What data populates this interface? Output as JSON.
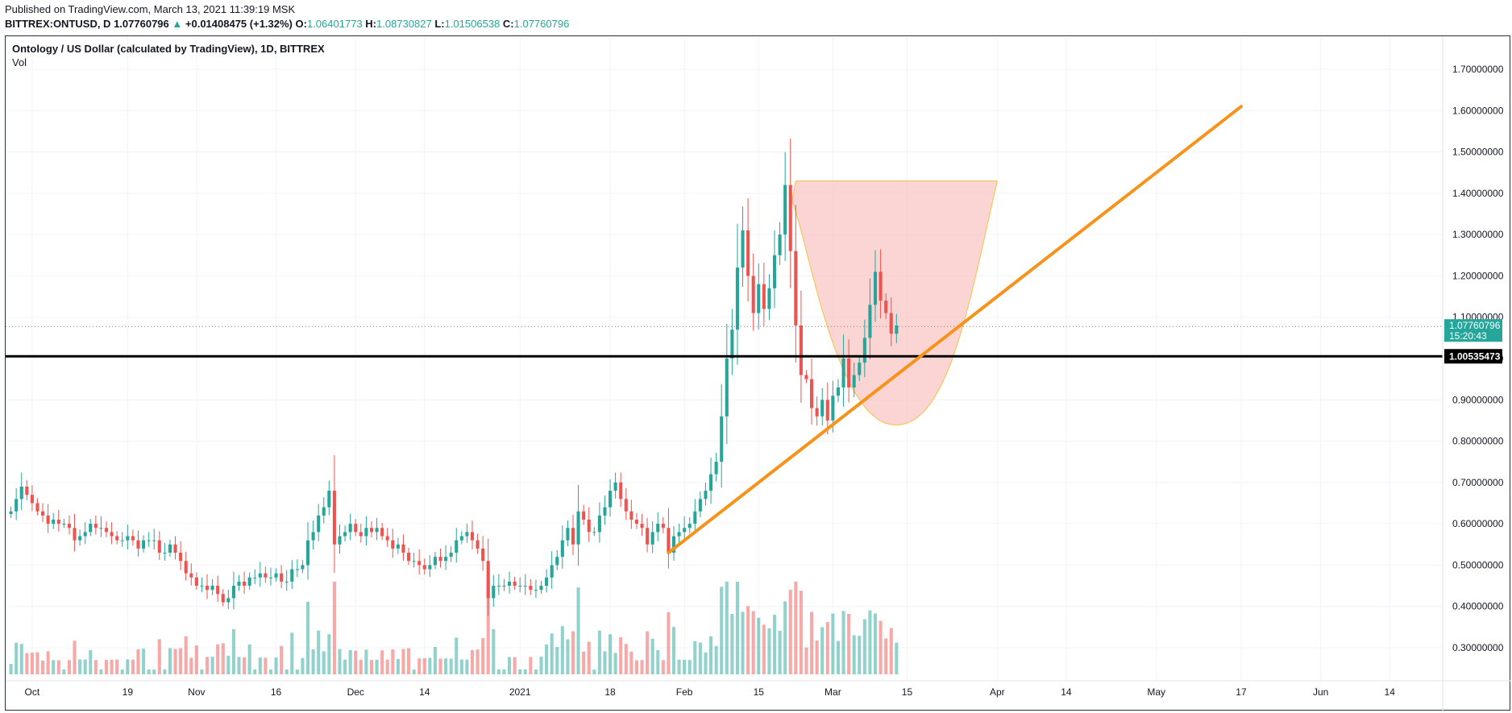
{
  "header": {
    "published": "Published on TradingView.com, March 13, 2021 11:39:19 MSK",
    "symbol": "BITTREX:ONTUSD, D",
    "last": "1.07760796",
    "change": "+0.01408475 (+1.32%)",
    "o_label": "O:",
    "o": "1.06401773",
    "h_label": "H:",
    "h": "1.08730827",
    "l_label": "L:",
    "l": "1.01506538",
    "c_label": "C:",
    "c": "1.07760796"
  },
  "legend": {
    "title": "Ontology / US Dollar (calculated by TradingView), 1D, BITTREX",
    "vol": "Vol"
  },
  "badges": {
    "price": "1.07760796",
    "countdown": "15:20:43",
    "level": "1.00535473"
  },
  "colors": {
    "up": "#26a69a",
    "down": "#ef5350",
    "trendline": "#f7931a",
    "shape_fill": "#f8c7c5",
    "shape_stroke": "#f5c242",
    "level_line": "#000000"
  },
  "chart_data": {
    "type": "candlestick",
    "symbol": "BITTREX:ONTUSD",
    "interval": "1D",
    "y_ticks": [
      0.3,
      0.4,
      0.5,
      0.6,
      0.7,
      0.8,
      0.9,
      1.0,
      1.1,
      1.2,
      1.3,
      1.4,
      1.5,
      1.6,
      1.7
    ],
    "y_tick_labels": [
      "0.30000000",
      "0.40000000",
      "0.50000000",
      "0.60000000",
      "0.70000000",
      "0.80000000",
      "0.90000000",
      "1.00000000",
      "1.10000000",
      "1.20000000",
      "1.30000000",
      "1.40000000",
      "1.50000000",
      "1.60000000",
      "1.70000000"
    ],
    "ylim": [
      0.22,
      1.78
    ],
    "x_start": "2020-09-26",
    "x_end": "2021-06-24",
    "x_ticks": [
      {
        "date": "2020-10-01",
        "label": "Oct"
      },
      {
        "date": "2020-10-19",
        "label": "19"
      },
      {
        "date": "2020-11-01",
        "label": "Nov"
      },
      {
        "date": "2020-11-16",
        "label": "16"
      },
      {
        "date": "2020-12-01",
        "label": "Dec"
      },
      {
        "date": "2020-12-14",
        "label": "14"
      },
      {
        "date": "2021-01-01",
        "label": "2021"
      },
      {
        "date": "2021-01-18",
        "label": "18"
      },
      {
        "date": "2021-02-01",
        "label": "Feb"
      },
      {
        "date": "2021-02-15",
        "label": "15"
      },
      {
        "date": "2021-03-01",
        "label": "Mar"
      },
      {
        "date": "2021-03-15",
        "label": "15"
      },
      {
        "date": "2021-04-01",
        "label": "Apr"
      },
      {
        "date": "2021-04-14",
        "label": "14"
      },
      {
        "date": "2021-05-01",
        "label": "May"
      },
      {
        "date": "2021-05-17",
        "label": "17"
      },
      {
        "date": "2021-06-01",
        "label": "Jun"
      },
      {
        "date": "2021-06-14",
        "label": "14"
      }
    ],
    "ohlc": [
      {
        "date": "2020-09-27",
        "close": 0.63
      },
      {
        "date": "2020-09-28",
        "close": 0.66
      },
      {
        "date": "2020-09-29",
        "close": 0.69
      },
      {
        "date": "2020-09-30",
        "close": 0.67
      },
      {
        "date": "2020-10-01",
        "close": 0.65
      },
      {
        "date": "2020-10-02",
        "close": 0.63
      },
      {
        "date": "2020-10-03",
        "close": 0.62
      },
      {
        "date": "2020-10-04",
        "close": 0.6
      },
      {
        "date": "2020-10-05",
        "close": 0.61
      },
      {
        "date": "2020-10-06",
        "close": 0.6
      },
      {
        "date": "2020-10-07",
        "close": 0.6
      },
      {
        "date": "2020-10-08",
        "close": 0.59
      },
      {
        "date": "2020-10-09",
        "close": 0.56
      },
      {
        "date": "2020-10-10",
        "close": 0.57
      },
      {
        "date": "2020-10-11",
        "close": 0.58
      },
      {
        "date": "2020-10-12",
        "close": 0.6
      },
      {
        "date": "2020-10-13",
        "close": 0.59
      },
      {
        "date": "2020-10-14",
        "close": 0.59
      },
      {
        "date": "2020-10-15",
        "close": 0.58
      },
      {
        "date": "2020-10-16",
        "close": 0.57
      },
      {
        "date": "2020-10-17",
        "close": 0.56
      },
      {
        "date": "2020-10-18",
        "close": 0.56
      },
      {
        "date": "2020-10-19",
        "close": 0.57
      },
      {
        "date": "2020-10-20",
        "close": 0.56
      },
      {
        "date": "2020-10-21",
        "close": 0.54
      },
      {
        "date": "2020-10-22",
        "close": 0.56
      },
      {
        "date": "2020-10-23",
        "close": 0.56
      },
      {
        "date": "2020-10-24",
        "close": 0.56
      },
      {
        "date": "2020-10-25",
        "close": 0.53
      },
      {
        "date": "2020-10-26",
        "close": 0.53
      },
      {
        "date": "2020-10-27",
        "close": 0.55
      },
      {
        "date": "2020-10-28",
        "close": 0.53
      },
      {
        "date": "2020-10-29",
        "close": 0.51
      },
      {
        "date": "2020-10-30",
        "close": 0.48
      },
      {
        "date": "2020-10-31",
        "close": 0.47
      },
      {
        "date": "2020-11-01",
        "close": 0.45
      },
      {
        "date": "2020-11-02",
        "close": 0.45
      },
      {
        "date": "2020-11-03",
        "close": 0.44
      },
      {
        "date": "2020-11-04",
        "close": 0.45
      },
      {
        "date": "2020-11-05",
        "close": 0.43
      },
      {
        "date": "2020-11-06",
        "close": 0.41
      },
      {
        "date": "2020-11-07",
        "close": 0.42
      },
      {
        "date": "2020-11-08",
        "close": 0.45
      },
      {
        "date": "2020-11-09",
        "close": 0.46
      },
      {
        "date": "2020-11-10",
        "close": 0.45
      },
      {
        "date": "2020-11-11",
        "close": 0.47
      },
      {
        "date": "2020-11-12",
        "close": 0.47
      },
      {
        "date": "2020-11-13",
        "close": 0.48
      },
      {
        "date": "2020-11-14",
        "close": 0.47
      },
      {
        "date": "2020-11-15",
        "close": 0.47
      },
      {
        "date": "2020-11-16",
        "close": 0.48
      },
      {
        "date": "2020-11-17",
        "close": 0.46
      },
      {
        "date": "2020-11-18",
        "close": 0.46
      },
      {
        "date": "2020-11-19",
        "close": 0.49
      },
      {
        "date": "2020-11-20",
        "close": 0.49
      },
      {
        "date": "2020-11-21",
        "close": 0.5
      },
      {
        "date": "2020-11-22",
        "close": 0.56
      },
      {
        "date": "2020-11-23",
        "close": 0.58
      },
      {
        "date": "2020-11-24",
        "close": 0.62
      },
      {
        "date": "2020-11-25",
        "close": 0.64
      },
      {
        "date": "2020-11-26",
        "close": 0.68
      },
      {
        "date": "2020-11-27",
        "close": 0.55
      },
      {
        "date": "2020-11-28",
        "close": 0.57
      },
      {
        "date": "2020-11-29",
        "close": 0.58
      },
      {
        "date": "2020-11-30",
        "close": 0.6
      },
      {
        "date": "2020-12-01",
        "close": 0.58
      },
      {
        "date": "2020-12-02",
        "close": 0.57
      },
      {
        "date": "2020-12-03",
        "close": 0.59
      },
      {
        "date": "2020-12-04",
        "close": 0.58
      },
      {
        "date": "2020-12-05",
        "close": 0.59
      },
      {
        "date": "2020-12-06",
        "close": 0.57
      },
      {
        "date": "2020-12-07",
        "close": 0.56
      },
      {
        "date": "2020-12-08",
        "close": 0.54
      },
      {
        "date": "2020-12-09",
        "close": 0.55
      },
      {
        "date": "2020-12-10",
        "close": 0.53
      },
      {
        "date": "2020-12-11",
        "close": 0.51
      },
      {
        "date": "2020-12-12",
        "close": 0.51
      },
      {
        "date": "2020-12-13",
        "close": 0.5
      },
      {
        "date": "2020-12-14",
        "close": 0.49
      },
      {
        "date": "2020-12-15",
        "close": 0.5
      },
      {
        "date": "2020-12-16",
        "close": 0.52
      },
      {
        "date": "2020-12-17",
        "close": 0.51
      },
      {
        "date": "2020-12-18",
        "close": 0.52
      },
      {
        "date": "2020-12-19",
        "close": 0.53
      },
      {
        "date": "2020-12-20",
        "close": 0.56
      },
      {
        "date": "2020-12-21",
        "close": 0.57
      },
      {
        "date": "2020-12-22",
        "close": 0.58
      },
      {
        "date": "2020-12-23",
        "close": 0.56
      },
      {
        "date": "2020-12-24",
        "close": 0.54
      },
      {
        "date": "2020-12-25",
        "close": 0.51
      },
      {
        "date": "2020-12-26",
        "close": 0.42
      },
      {
        "date": "2020-12-27",
        "close": 0.45
      },
      {
        "date": "2020-12-28",
        "close": 0.45
      },
      {
        "date": "2020-12-29",
        "close": 0.45
      },
      {
        "date": "2020-12-30",
        "close": 0.46
      },
      {
        "date": "2020-12-31",
        "close": 0.45
      },
      {
        "date": "2021-01-01",
        "close": 0.45
      },
      {
        "date": "2021-01-02",
        "close": 0.45
      },
      {
        "date": "2021-01-03",
        "close": 0.44
      },
      {
        "date": "2021-01-04",
        "close": 0.44
      },
      {
        "date": "2021-01-05",
        "close": 0.45
      },
      {
        "date": "2021-01-06",
        "close": 0.47
      },
      {
        "date": "2021-01-07",
        "close": 0.5
      },
      {
        "date": "2021-01-08",
        "close": 0.52
      },
      {
        "date": "2021-01-09",
        "close": 0.56
      },
      {
        "date": "2021-01-10",
        "close": 0.59
      },
      {
        "date": "2021-01-11",
        "close": 0.55
      },
      {
        "date": "2021-01-12",
        "close": 0.63
      },
      {
        "date": "2021-01-13",
        "close": 0.61
      },
      {
        "date": "2021-01-14",
        "close": 0.58
      },
      {
        "date": "2021-01-15",
        "close": 0.58
      },
      {
        "date": "2021-01-16",
        "close": 0.62
      },
      {
        "date": "2021-01-17",
        "close": 0.64
      },
      {
        "date": "2021-01-18",
        "close": 0.68
      },
      {
        "date": "2021-01-19",
        "close": 0.7
      },
      {
        "date": "2021-01-20",
        "close": 0.66
      },
      {
        "date": "2021-01-21",
        "close": 0.63
      },
      {
        "date": "2021-01-22",
        "close": 0.61
      },
      {
        "date": "2021-01-23",
        "close": 0.6
      },
      {
        "date": "2021-01-24",
        "close": 0.59
      },
      {
        "date": "2021-01-25",
        "close": 0.55
      },
      {
        "date": "2021-01-26",
        "close": 0.58
      },
      {
        "date": "2021-01-27",
        "close": 0.6
      },
      {
        "date": "2021-01-28",
        "close": 0.59
      },
      {
        "date": "2021-01-29",
        "close": 0.53
      },
      {
        "date": "2021-01-30",
        "close": 0.57
      },
      {
        "date": "2021-01-31",
        "close": 0.58
      },
      {
        "date": "2021-02-01",
        "close": 0.59
      },
      {
        "date": "2021-02-02",
        "close": 0.6
      },
      {
        "date": "2021-02-03",
        "close": 0.63
      },
      {
        "date": "2021-02-04",
        "close": 0.66
      },
      {
        "date": "2021-02-05",
        "close": 0.68
      },
      {
        "date": "2021-02-06",
        "close": 0.72
      },
      {
        "date": "2021-02-07",
        "close": 0.75
      },
      {
        "date": "2021-02-08",
        "close": 0.86
      },
      {
        "date": "2021-02-09",
        "close": 1.0
      },
      {
        "date": "2021-02-10",
        "close": 1.07
      },
      {
        "date": "2021-02-11",
        "close": 1.22
      },
      {
        "date": "2021-02-12",
        "close": 1.31
      },
      {
        "date": "2021-02-13",
        "close": 1.2
      },
      {
        "date": "2021-02-14",
        "close": 1.11
      },
      {
        "date": "2021-02-15",
        "close": 1.18
      },
      {
        "date": "2021-02-16",
        "close": 1.12
      },
      {
        "date": "2021-02-17",
        "close": 1.17
      },
      {
        "date": "2021-02-18",
        "close": 1.25
      },
      {
        "date": "2021-02-19",
        "close": 1.3
      },
      {
        "date": "2021-02-20",
        "close": 1.42
      },
      {
        "date": "2021-02-21",
        "close": 1.26
      },
      {
        "date": "2021-02-22",
        "close": 1.08
      },
      {
        "date": "2021-02-23",
        "close": 0.96
      },
      {
        "date": "2021-02-24",
        "close": 0.95
      },
      {
        "date": "2021-02-25",
        "close": 0.88
      },
      {
        "date": "2021-02-26",
        "close": 0.86
      },
      {
        "date": "2021-02-27",
        "close": 0.9
      },
      {
        "date": "2021-02-28",
        "close": 0.85
      },
      {
        "date": "2021-03-01",
        "close": 0.91
      },
      {
        "date": "2021-03-02",
        "close": 0.93
      },
      {
        "date": "2021-03-03",
        "close": 1.0
      },
      {
        "date": "2021-03-04",
        "close": 0.93
      },
      {
        "date": "2021-03-05",
        "close": 0.96
      },
      {
        "date": "2021-03-06",
        "close": 0.99
      },
      {
        "date": "2021-03-07",
        "close": 1.05
      },
      {
        "date": "2021-03-08",
        "close": 1.13
      },
      {
        "date": "2021-03-09",
        "close": 1.21
      },
      {
        "date": "2021-03-10",
        "close": 1.14
      },
      {
        "date": "2021-03-11",
        "close": 1.11
      },
      {
        "date": "2021-03-12",
        "close": 1.06
      },
      {
        "date": "2021-03-13",
        "close": 1.08
      }
    ],
    "volume_scale": "relative",
    "horizontal_line": 1.00535473,
    "trend_line": [
      {
        "date": "2021-01-29",
        "price": 0.53
      },
      {
        "date": "2021-05-17",
        "price": 1.61
      }
    ],
    "cup_shape": {
      "left": {
        "date": "2021-02-22",
        "price": 1.43
      },
      "right": {
        "date": "2021-04-01",
        "price": 1.43
      },
      "bottom": {
        "date": "2021-03-12",
        "price": 0.84
      },
      "left_foot": {
        "date": "2021-02-21",
        "price": 1.38
      }
    },
    "grid": true,
    "price_axis": "right"
  }
}
